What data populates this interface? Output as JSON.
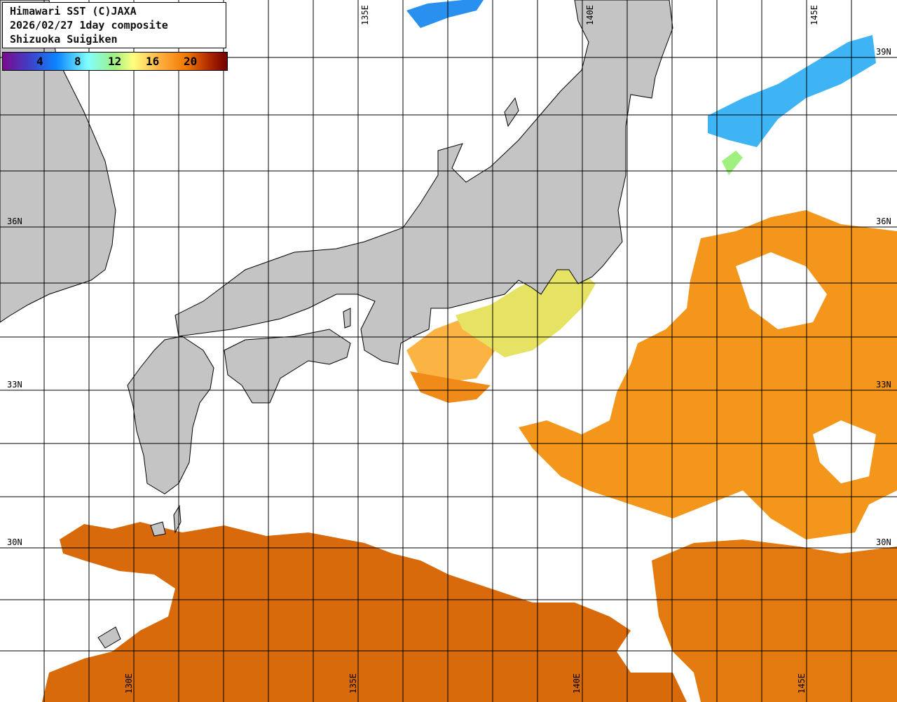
{
  "title": {
    "line1": "Himawari SST (C)JAXA",
    "line2": "2026/02/27 1day composite",
    "line3": "Shizuoka Suigiken"
  },
  "legend": {
    "ticks": [
      "4",
      "8",
      "12",
      "16",
      "20"
    ],
    "unit_scale": "sea surface temperature color scale"
  },
  "grid": {
    "lon_labels_top": [
      "135E",
      "140E",
      "145E"
    ],
    "lon_labels_bottom": [
      "130E",
      "135E",
      "140E",
      "145E"
    ],
    "lat_labels": [
      "39N",
      "36N",
      "33N",
      "30N"
    ]
  },
  "colors": {
    "land": "#c4c4c4",
    "no_data": "#ffffff",
    "warm_south": "#d96c0c",
    "orange": "#f4961c",
    "light_orange": "#fbb040",
    "yellow": "#e6e463",
    "blue": "#3fb4f4"
  }
}
